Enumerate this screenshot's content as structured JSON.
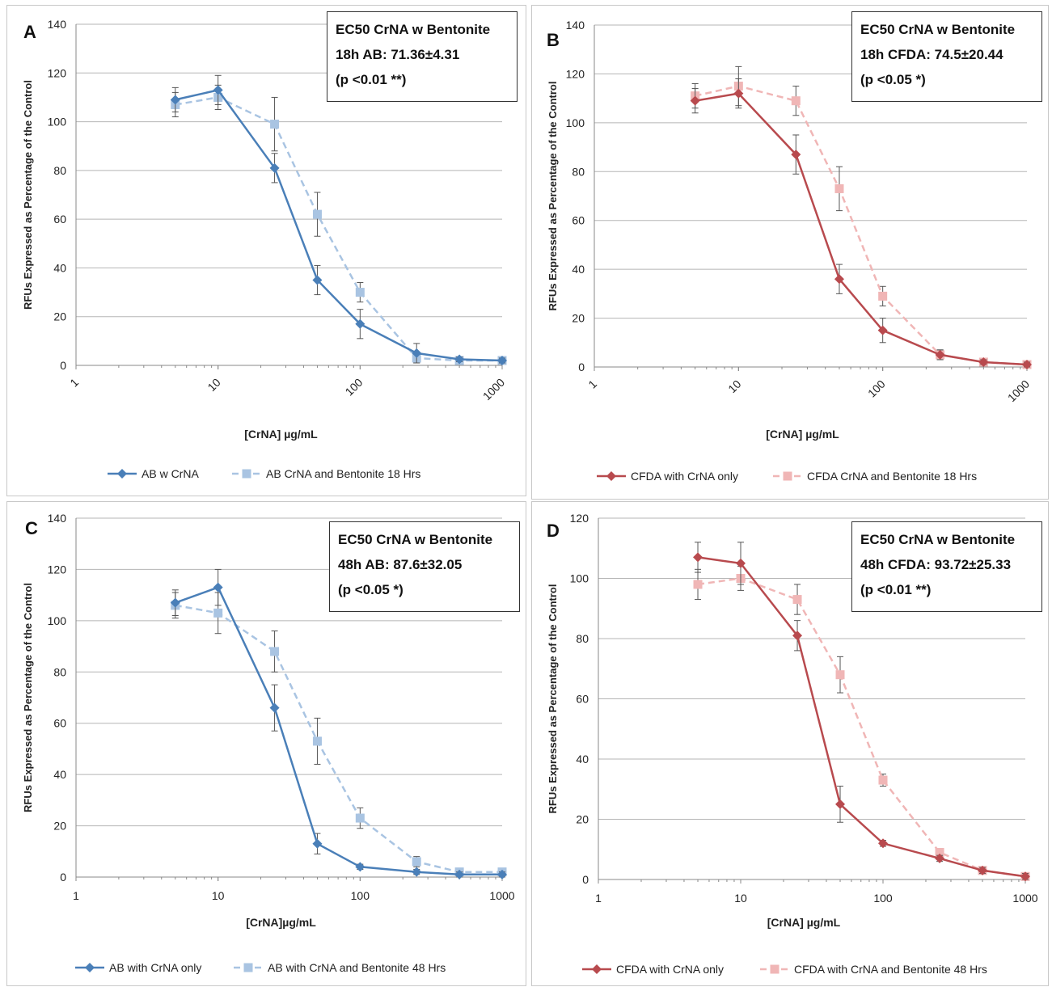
{
  "chart_data": [
    {
      "panel": "A",
      "type": "line",
      "x_scale": "log",
      "xlim": [
        1,
        1000
      ],
      "ylim": [
        0,
        140
      ],
      "x_ticks": [
        "1",
        "10",
        "100",
        "1000"
      ],
      "y_ticks": [
        "0",
        "20",
        "40",
        "60",
        "80",
        "100",
        "120",
        "140"
      ],
      "xlabel": "[CrNA] µg/mL",
      "ylabel": "RFUs Expressed as Percentage of the Control",
      "grid": "horizontal",
      "legend_position": "bottom",
      "annotation": [
        "EC50 CrNA w Bentonite",
        "18h AB: 71.36±4.31",
        "(p <0.01 **)"
      ],
      "x": [
        5,
        10,
        25,
        50,
        100,
        250,
        500,
        1000
      ],
      "series": [
        {
          "name": "AB w CrNA",
          "style": "solid",
          "marker": "diamond",
          "color": "#4a7fb8",
          "values": [
            109,
            113,
            81,
            35,
            17,
            5,
            2.5,
            2
          ],
          "errors": [
            5,
            6,
            6,
            6,
            6,
            4,
            1,
            1
          ]
        },
        {
          "name": "AB CrNA and Bentonite 18 Hrs",
          "style": "dashed",
          "marker": "square",
          "color": "#a9c4e2",
          "values": [
            107,
            110,
            99,
            62,
            30,
            3,
            2,
            2
          ],
          "errors": [
            5,
            5,
            11,
            9,
            4,
            2,
            1,
            1
          ]
        }
      ]
    },
    {
      "panel": "B",
      "type": "line",
      "x_scale": "log",
      "xlim": [
        1,
        1000
      ],
      "ylim": [
        0,
        140
      ],
      "x_ticks": [
        "1",
        "10",
        "100",
        "1000"
      ],
      "y_ticks": [
        "0",
        "20",
        "40",
        "60",
        "80",
        "100",
        "120",
        "140"
      ],
      "xlabel": "[CrNA] µg/mL",
      "ylabel": "RFUs Expressed as Percentage of the Control",
      "grid": "horizontal",
      "legend_position": "bottom",
      "annotation": [
        "EC50 CrNA w Bentonite",
        "18h CFDA: 74.5±20.44",
        "(p <0.05 *)"
      ],
      "x": [
        5,
        10,
        25,
        50,
        100,
        250,
        500,
        1000
      ],
      "series": [
        {
          "name": "CFDA with CrNA only",
          "style": "solid",
          "marker": "diamond",
          "color": "#b84a4e",
          "values": [
            109,
            112,
            87,
            36,
            15,
            5,
            2,
            1
          ],
          "errors": [
            5,
            6,
            8,
            6,
            5,
            2,
            1,
            1
          ]
        },
        {
          "name": "CFDA CrNA and Bentonite 18 Hrs",
          "style": "dashed",
          "marker": "square",
          "color": "#f0b6b6",
          "values": [
            111,
            115,
            109,
            73,
            29,
            5,
            2,
            1
          ],
          "errors": [
            5,
            8,
            6,
            9,
            4,
            2,
            1,
            1
          ]
        }
      ]
    },
    {
      "panel": "C",
      "type": "line",
      "x_scale": "log",
      "xlim": [
        1,
        1000
      ],
      "ylim": [
        0,
        140
      ],
      "x_ticks": [
        "1",
        "10",
        "100",
        "1000"
      ],
      "y_ticks": [
        "0",
        "20",
        "40",
        "60",
        "80",
        "100",
        "120",
        "140"
      ],
      "xlabel": "[CrNA]µg/mL",
      "ylabel": "RFUs Expressed as Percentage of the Control",
      "grid": "horizontal",
      "legend_position": "bottom",
      "annotation": [
        "EC50 CrNA w Bentonite",
        "48h AB: 87.6±32.05",
        "(p <0.05 *)"
      ],
      "x": [
        5,
        10,
        25,
        50,
        100,
        250,
        500,
        1000
      ],
      "series": [
        {
          "name": "AB with CrNA only",
          "style": "solid",
          "marker": "diamond",
          "color": "#4a7fb8",
          "values": [
            107,
            113,
            66,
            13,
            4,
            2,
            1,
            1
          ],
          "errors": [
            5,
            7,
            9,
            4,
            1,
            1,
            1,
            1
          ]
        },
        {
          "name": "AB with CrNA and Bentonite 48 Hrs",
          "style": "dashed",
          "marker": "square",
          "color": "#a9c4e2",
          "values": [
            106,
            103,
            88,
            53,
            23,
            6,
            2,
            2
          ],
          "errors": [
            5,
            8,
            8,
            9,
            4,
            2,
            1,
            1
          ]
        }
      ]
    },
    {
      "panel": "D",
      "type": "line",
      "x_scale": "log",
      "xlim": [
        1,
        1000
      ],
      "ylim": [
        0,
        120
      ],
      "x_ticks": [
        "1",
        "10",
        "100",
        "1000"
      ],
      "y_ticks": [
        "0",
        "20",
        "40",
        "60",
        "80",
        "100",
        "120"
      ],
      "xlabel": "[CrNA] µg/mL",
      "ylabel": "RFUs Expressed as Percentage of the Control",
      "grid": "horizontal",
      "legend_position": "bottom",
      "annotation": [
        "EC50 CrNA w Bentonite",
        "48h CFDA: 93.72±25.33",
        "(p <0.01 **)"
      ],
      "x": [
        5,
        10,
        25,
        50,
        100,
        250,
        500,
        1000
      ],
      "series": [
        {
          "name": "CFDA with CrNA only",
          "style": "solid",
          "marker": "diamond",
          "color": "#b84a4e",
          "values": [
            107,
            105,
            81,
            25,
            12,
            7,
            3,
            1
          ],
          "errors": [
            5,
            7,
            5,
            6,
            1,
            1,
            1,
            1
          ]
        },
        {
          "name": "CFDA with CrNA and Bentonite 48 Hrs",
          "style": "dashed",
          "marker": "square",
          "color": "#f0b6b6",
          "values": [
            98,
            100,
            93,
            68,
            33,
            9,
            3,
            1
          ],
          "errors": [
            5,
            4,
            5,
            6,
            2,
            1,
            1,
            1
          ]
        }
      ]
    }
  ]
}
